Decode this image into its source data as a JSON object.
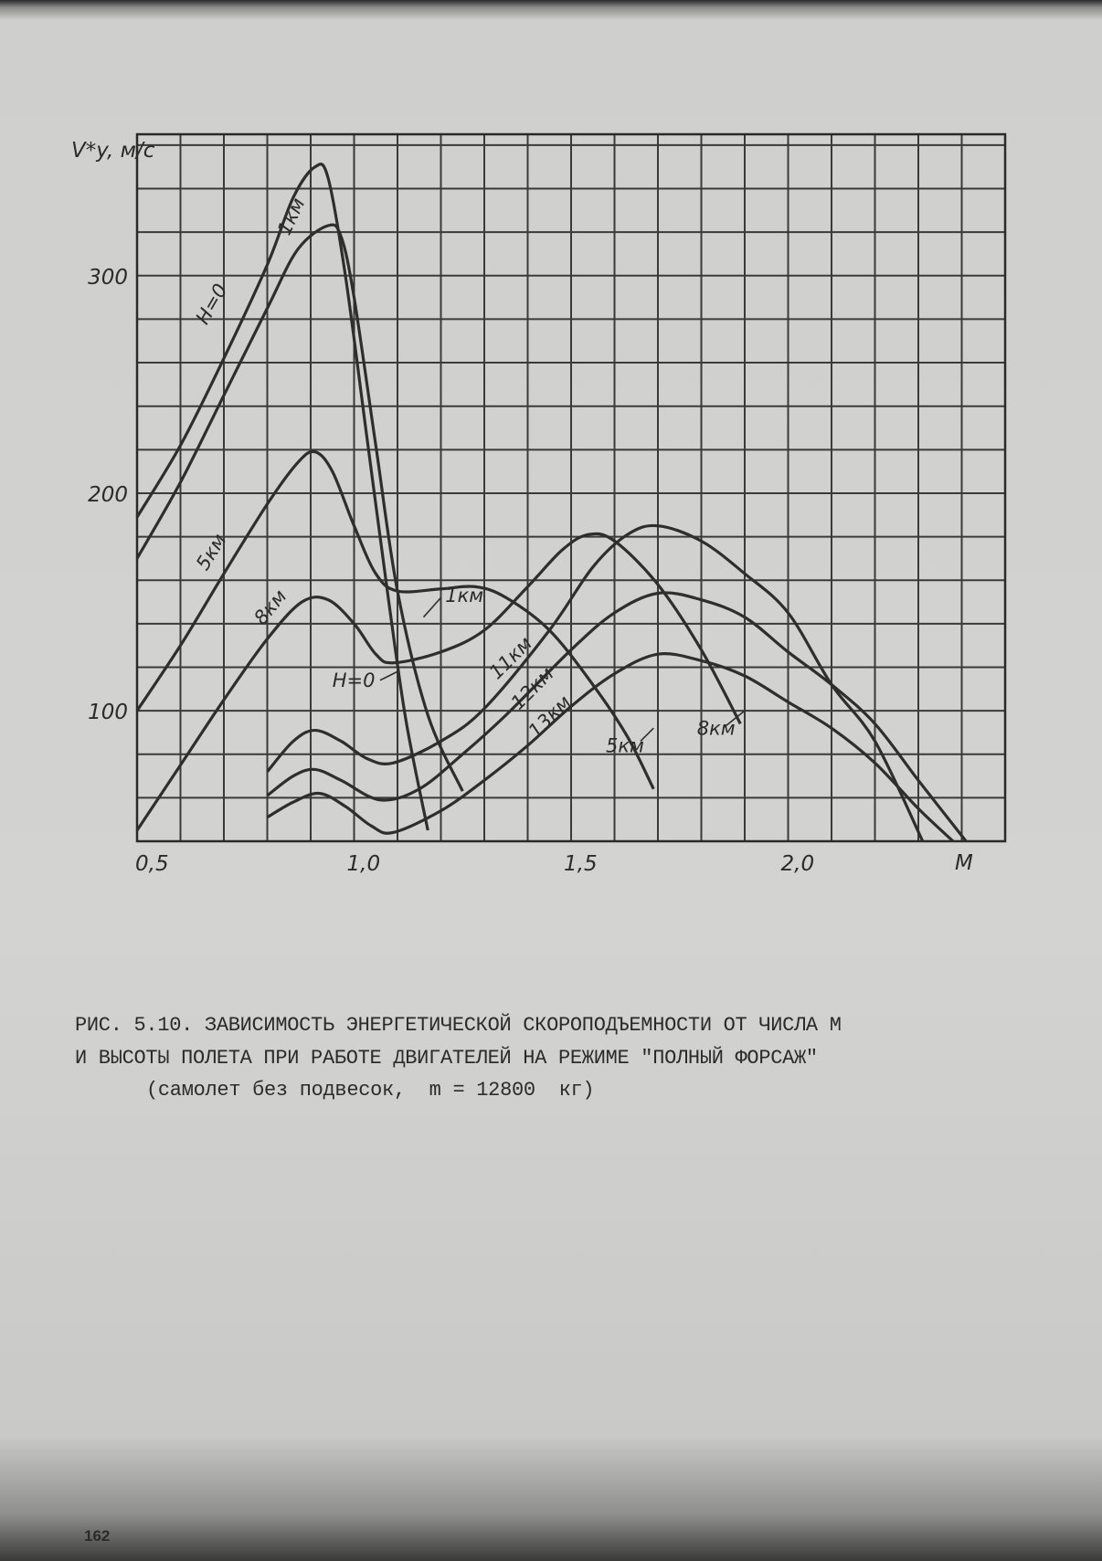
{
  "chart_data": {
    "type": "line",
    "ylabel": "V*y, м/с",
    "xlabel": "M",
    "xlim": [
      0.5,
      2.5
    ],
    "ylim": [
      40,
      365
    ],
    "x_ticks": [
      "0,5",
      "1,0",
      "1,5",
      "2,0"
    ],
    "x_tick_values": [
      0.5,
      1.0,
      1.5,
      2.0
    ],
    "y_ticks": [
      "100",
      "200",
      "300"
    ],
    "y_tick_values": [
      100,
      200,
      300
    ],
    "grid": true,
    "grid_step": {
      "x": 0.1,
      "y": 20
    },
    "line_color": "#2e2e2e",
    "series": [
      {
        "name": "H=0",
        "points": [
          [
            0.5,
            189
          ],
          [
            0.6,
            222
          ],
          [
            0.7,
            262
          ],
          [
            0.8,
            305
          ],
          [
            0.86,
            336
          ],
          [
            0.91,
            350
          ],
          [
            0.94,
            345
          ],
          [
            0.98,
            300
          ],
          [
            1.03,
            225
          ],
          [
            1.08,
            150
          ],
          [
            1.12,
            95
          ],
          [
            1.17,
            45
          ]
        ]
      },
      {
        "name": "1 км",
        "points": [
          [
            0.5,
            170
          ],
          [
            0.6,
            205
          ],
          [
            0.7,
            245
          ],
          [
            0.8,
            285
          ],
          [
            0.87,
            312
          ],
          [
            0.94,
            323
          ],
          [
            0.97,
            318
          ],
          [
            1.0,
            290
          ],
          [
            1.05,
            222
          ],
          [
            1.1,
            155
          ],
          [
            1.17,
            98
          ],
          [
            1.25,
            63
          ]
        ]
      },
      {
        "name": "5 км",
        "points": [
          [
            0.5,
            100
          ],
          [
            0.6,
            130
          ],
          [
            0.7,
            163
          ],
          [
            0.8,
            195
          ],
          [
            0.87,
            214
          ],
          [
            0.91,
            219
          ],
          [
            0.95,
            210
          ],
          [
            1.0,
            185
          ],
          [
            1.05,
            163
          ],
          [
            1.1,
            155
          ],
          [
            1.2,
            156
          ],
          [
            1.28,
            157
          ],
          [
            1.35,
            152
          ],
          [
            1.45,
            137
          ],
          [
            1.55,
            112
          ],
          [
            1.63,
            88
          ],
          [
            1.69,
            64
          ]
        ]
      },
      {
        "name": "8 км",
        "points": [
          [
            0.5,
            45
          ],
          [
            0.6,
            75
          ],
          [
            0.7,
            105
          ],
          [
            0.8,
            133
          ],
          [
            0.88,
            150
          ],
          [
            0.94,
            151
          ],
          [
            1.0,
            140
          ],
          [
            1.05,
            126
          ],
          [
            1.09,
            122
          ],
          [
            1.2,
            127
          ],
          [
            1.3,
            137
          ],
          [
            1.4,
            157
          ],
          [
            1.48,
            174
          ],
          [
            1.54,
            181
          ],
          [
            1.6,
            178
          ],
          [
            1.7,
            158
          ],
          [
            1.8,
            128
          ],
          [
            1.89,
            94
          ]
        ]
      },
      {
        "name": "11 км",
        "points": [
          [
            0.8,
            72
          ],
          [
            0.86,
            86
          ],
          [
            0.91,
            91
          ],
          [
            0.97,
            86
          ],
          [
            1.03,
            78
          ],
          [
            1.09,
            76
          ],
          [
            1.2,
            86
          ],
          [
            1.3,
            101
          ],
          [
            1.45,
            137
          ],
          [
            1.55,
            166
          ],
          [
            1.63,
            181
          ],
          [
            1.7,
            185
          ],
          [
            1.8,
            178
          ],
          [
            1.9,
            163
          ],
          [
            2.0,
            145
          ],
          [
            2.1,
            112
          ],
          [
            2.2,
            86
          ],
          [
            2.31,
            40
          ]
        ]
      },
      {
        "name": "12 км",
        "points": [
          [
            0.8,
            61
          ],
          [
            0.86,
            70
          ],
          [
            0.91,
            73
          ],
          [
            0.97,
            68
          ],
          [
            1.06,
            59
          ],
          [
            1.15,
            64
          ],
          [
            1.25,
            80
          ],
          [
            1.35,
            98
          ],
          [
            1.5,
            128
          ],
          [
            1.6,
            145
          ],
          [
            1.7,
            154
          ],
          [
            1.8,
            151
          ],
          [
            1.9,
            143
          ],
          [
            2.0,
            127
          ],
          [
            2.1,
            112
          ],
          [
            2.2,
            94
          ],
          [
            2.3,
            68
          ],
          [
            2.41,
            40
          ]
        ]
      },
      {
        "name": "13 км",
        "points": [
          [
            0.8,
            51
          ],
          [
            0.86,
            58
          ],
          [
            0.92,
            62
          ],
          [
            0.98,
            56
          ],
          [
            1.04,
            47
          ],
          [
            1.09,
            44
          ],
          [
            1.2,
            54
          ],
          [
            1.3,
            68
          ],
          [
            1.4,
            84
          ],
          [
            1.5,
            102
          ],
          [
            1.6,
            117
          ],
          [
            1.7,
            126
          ],
          [
            1.8,
            123
          ],
          [
            1.9,
            116
          ],
          [
            2.0,
            104
          ],
          [
            2.1,
            92
          ],
          [
            2.2,
            76
          ],
          [
            2.3,
            55
          ],
          [
            2.38,
            40
          ]
        ]
      }
    ],
    "annotations": [
      "H=0",
      "1км",
      "5км",
      "8км",
      "1км",
      "H=0",
      "11км",
      "12км",
      "13км",
      "5км",
      "8км"
    ]
  },
  "caption": {
    "line1": "РИС. 5.10. ЗАВИСИМОСТЬ ЭНЕРГЕТИЧЕСКОЙ СКОРОПОДЪЕМНОСТИ ОТ ЧИСЛА М",
    "line2": "И ВЫСОТЫ ПОЛЕТА ПРИ РАБОТЕ ДВИГАТЕЛЕЙ НА РЕЖИМЕ \"ПОЛНЫЙ ФОРСАЖ\"",
    "line3": "(самолет без подвесок,  m = 12800  кг)"
  },
  "page_number": "162"
}
